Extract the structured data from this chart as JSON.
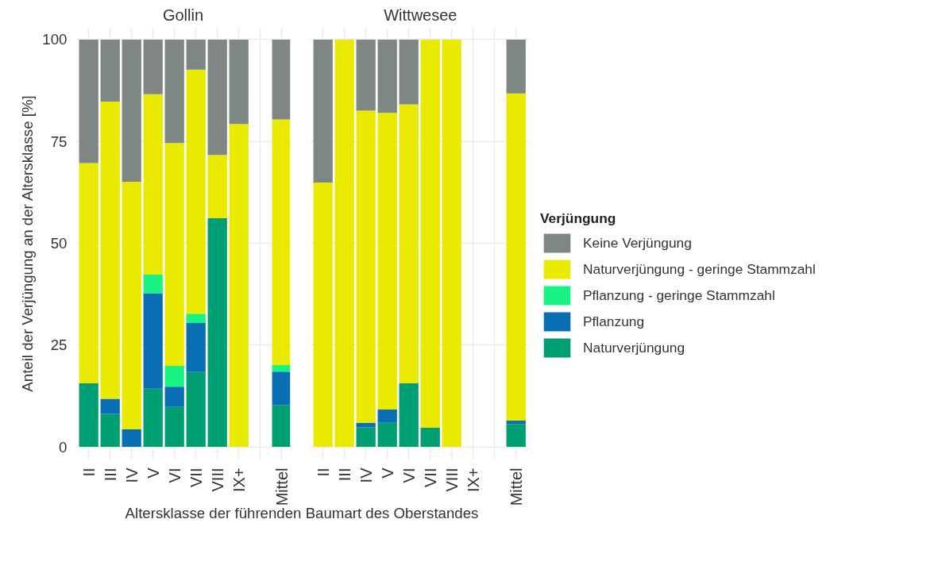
{
  "chart_data": [
    {
      "type": "bar",
      "stacked": true,
      "title": "Gollin",
      "ylabel": "Anteil der Verjüngung an der Altersklasse [%]",
      "xlabel": "Altersklasse der führenden Baumart des Oberstandes",
      "categories": [
        "II",
        "III",
        "IV",
        "V",
        "VI",
        "VII",
        "VIII",
        "IX+",
        null,
        "Mittel"
      ],
      "series": [
        {
          "color": "#009e73",
          "values": [
            15.6,
            8.1,
            0,
            14.3,
            9.8,
            18.4,
            56.2,
            0,
            null,
            10.3
          ]
        },
        {
          "color": "#0a6eb4",
          "values": [
            0,
            3.7,
            4.3,
            23.4,
            5.0,
            12.0,
            0,
            0,
            null,
            8.2
          ]
        },
        {
          "color": "#1af283",
          "values": [
            0,
            0,
            0,
            4.6,
            5.1,
            2.3,
            0,
            0,
            null,
            1.6
          ]
        },
        {
          "color": "#eaea00",
          "values": [
            54.1,
            73.0,
            60.8,
            44.3,
            54.7,
            59.9,
            15.5,
            79.3,
            null,
            60.3
          ]
        },
        {
          "color": "#7f8784",
          "values": [
            30.3,
            15.2,
            34.9,
            13.4,
            25.4,
            7.4,
            28.3,
            20.7,
            null,
            19.6
          ]
        }
      ],
      "ylim": [
        -3,
        103
      ],
      "yticks": [
        0,
        25,
        50,
        75,
        100
      ],
      "grid": true
    },
    {
      "type": "bar",
      "stacked": true,
      "title": "Wittwesee",
      "legend": "right",
      "legend_title": "Verjüngung",
      "tick_labels": "x",
      "categories": [
        "II",
        "III",
        "IV",
        "V",
        "VI",
        "VII",
        "VIII",
        "IX+",
        null,
        "Mittel"
      ],
      "series": [
        {
          "name": "Naturverjüngung",
          "color": "#009e73",
          "values": [
            0,
            0,
            4.8,
            5.9,
            15.6,
            4.7,
            0,
            null,
            null,
            5.6
          ]
        },
        {
          "name": "Pflanzung",
          "color": "#0a6eb4",
          "values": [
            0,
            0,
            1.1,
            3.3,
            0,
            0,
            0,
            null,
            null,
            0.9
          ]
        },
        {
          "name": "Pflanzung - geringe Stammzahl",
          "color": "#1af283",
          "values": [
            0,
            0,
            0,
            0,
            0,
            0,
            0,
            null,
            null,
            0
          ]
        },
        {
          "name": "Naturverjüngung - geringe Stammzahl",
          "color": "#eaea00",
          "values": [
            64.9,
            100,
            76.7,
            72.8,
            68.5,
            95.3,
            100,
            null,
            null,
            80.3
          ]
        },
        {
          "name": "Keine Verjüngung",
          "color": "#7f8784",
          "values": [
            35.1,
            0,
            17.4,
            18.0,
            15.9,
            0,
            0,
            null,
            null,
            13.2
          ]
        }
      ],
      "ylim": [
        -3,
        103
      ],
      "yticks": [
        0,
        25,
        50,
        75,
        100
      ],
      "grid": true
    }
  ]
}
